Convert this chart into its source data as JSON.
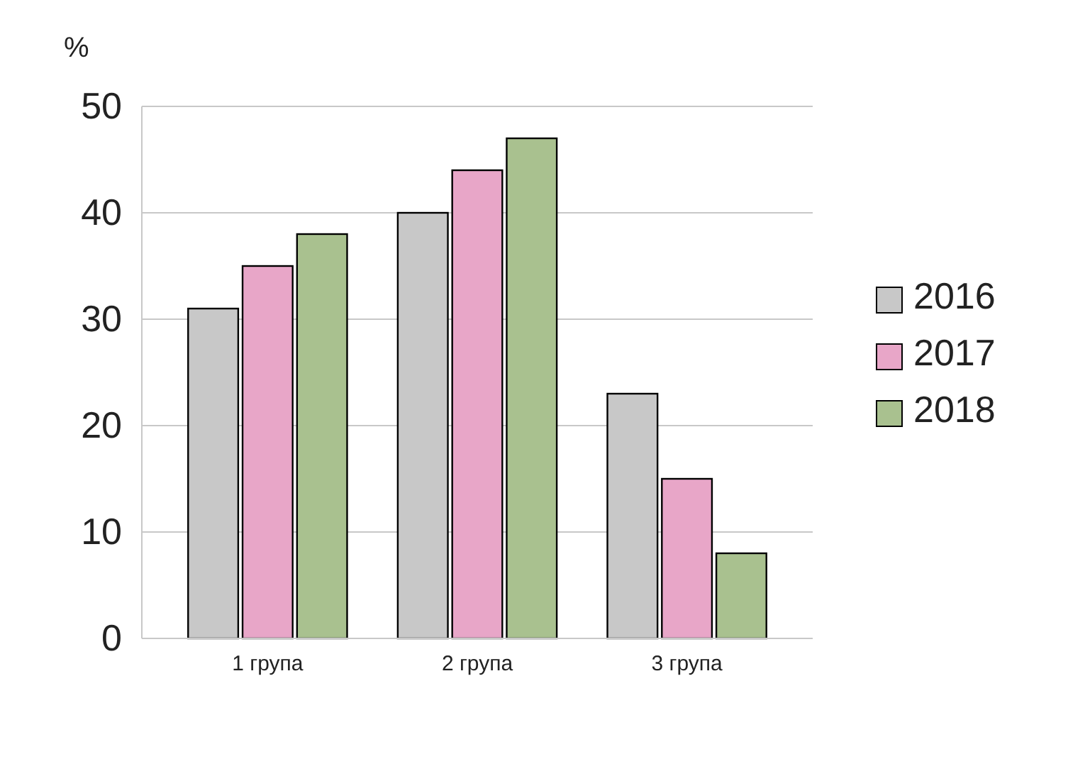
{
  "chart_data": {
    "type": "bar",
    "ylabel": "%",
    "categories": [
      "1 група",
      "2 група",
      "3 група"
    ],
    "series": [
      {
        "name": "2016",
        "color": "#c8c8c8",
        "values": [
          31,
          40,
          23
        ]
      },
      {
        "name": "2017",
        "color": "#e8a6c8",
        "values": [
          35,
          44,
          15
        ]
      },
      {
        "name": "2018",
        "color": "#a9c18f",
        "values": [
          38,
          47,
          8
        ]
      }
    ],
    "ylim": [
      0,
      50
    ],
    "yticks": [
      0,
      10,
      20,
      30,
      40,
      50
    ],
    "grid": "y",
    "legend": "right"
  }
}
